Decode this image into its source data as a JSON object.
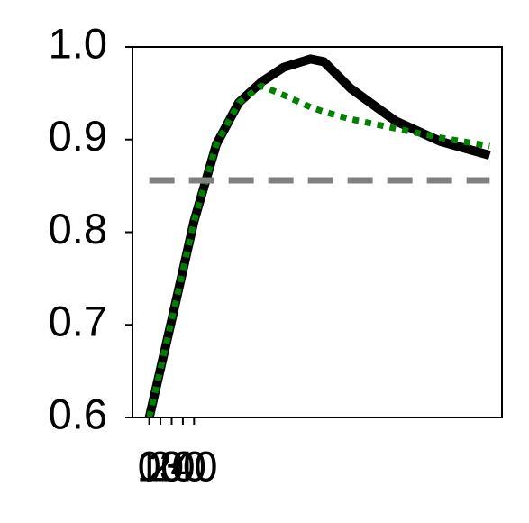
{
  "chart_data": {
    "type": "line",
    "x": [
      0,
      20,
      40,
      60,
      80,
      100,
      120,
      144,
      156,
      180,
      220,
      260,
      304
    ],
    "series": [
      {
        "color": "#000000",
        "linestyle": "solid",
        "values": [
          0.6,
          0.705,
          0.812,
          0.895,
          0.94,
          0.962,
          0.978,
          0.987,
          0.984,
          0.955,
          0.92,
          0.898,
          0.883
        ]
      },
      {
        "color": "#008000",
        "linestyle": "dotted",
        "values": [
          0.6,
          0.705,
          0.812,
          0.895,
          0.94,
          0.958,
          0.948,
          0.935,
          0.93,
          0.922,
          0.912,
          0.902,
          0.893
        ]
      },
      {
        "color": "#808080",
        "linestyle": "dashed",
        "values": [
          0.856,
          0.856,
          0.856,
          0.856,
          0.856,
          0.856,
          0.856,
          0.856,
          0.856,
          0.856,
          0.856,
          0.856,
          0.856
        ]
      }
    ],
    "xlim": [
      -15,
      315
    ],
    "xticks": [
      0,
      10,
      20,
      30,
      40
    ],
    "ylim": [
      0.6,
      1.0
    ],
    "yticks": [
      {
        "value": 0.6,
        "label": "0.6"
      },
      {
        "value": 0.7,
        "label": "0.7"
      },
      {
        "value": 0.8,
        "label": "0.8"
      },
      {
        "value": 0.9,
        "label": "0.9"
      },
      {
        "value": 1.0,
        "label": "1.0"
      }
    ],
    "grid": false
  }
}
